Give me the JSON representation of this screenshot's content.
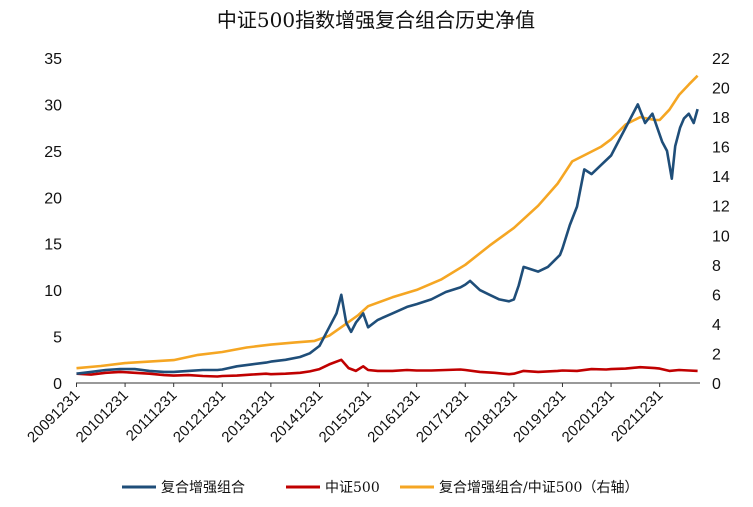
{
  "chart_data": {
    "type": "line",
    "title": "中证500指数增强复合组合历史净值",
    "x_tick_labels": [
      "20091231",
      "20101231",
      "20111231",
      "20121231",
      "20131231",
      "20141231",
      "20151231",
      "20161231",
      "20171231",
      "20181231",
      "20191231",
      "20201231",
      "20211231"
    ],
    "x_range": [
      2009.99,
      2022.83
    ],
    "y_left": {
      "ticks": [
        0,
        5,
        10,
        15,
        20,
        25,
        30,
        35
      ],
      "range": [
        0,
        35
      ]
    },
    "y_right": {
      "ticks": [
        0,
        2,
        4,
        6,
        8,
        10,
        12,
        14,
        16,
        18,
        20,
        22
      ],
      "range": [
        0,
        22
      ]
    },
    "legend_position": "bottom",
    "grid": false,
    "series": [
      {
        "name": "复合增强组合",
        "axis": "left",
        "color": "#1f4e79",
        "points": [
          [
            2010.0,
            1.0
          ],
          [
            2010.3,
            1.2
          ],
          [
            2010.6,
            1.4
          ],
          [
            2010.9,
            1.5
          ],
          [
            2011.2,
            1.5
          ],
          [
            2011.5,
            1.3
          ],
          [
            2011.8,
            1.2
          ],
          [
            2012.0,
            1.2
          ],
          [
            2012.3,
            1.3
          ],
          [
            2012.6,
            1.4
          ],
          [
            2012.9,
            1.4
          ],
          [
            2013.0,
            1.45
          ],
          [
            2013.3,
            1.8
          ],
          [
            2013.6,
            2.0
          ],
          [
            2013.9,
            2.2
          ],
          [
            2014.0,
            2.3
          ],
          [
            2014.3,
            2.5
          ],
          [
            2014.6,
            2.8
          ],
          [
            2014.8,
            3.2
          ],
          [
            2015.0,
            4.0
          ],
          [
            2015.2,
            6.0
          ],
          [
            2015.35,
            7.5
          ],
          [
            2015.45,
            9.5
          ],
          [
            2015.55,
            6.5
          ],
          [
            2015.65,
            5.5
          ],
          [
            2015.75,
            6.5
          ],
          [
            2015.9,
            7.5
          ],
          [
            2016.0,
            6.0
          ],
          [
            2016.2,
            6.8
          ],
          [
            2016.5,
            7.5
          ],
          [
            2016.8,
            8.2
          ],
          [
            2017.0,
            8.5
          ],
          [
            2017.3,
            9.0
          ],
          [
            2017.6,
            9.8
          ],
          [
            2017.9,
            10.3
          ],
          [
            2018.0,
            10.6
          ],
          [
            2018.1,
            11.0
          ],
          [
            2018.3,
            10.0
          ],
          [
            2018.5,
            9.5
          ],
          [
            2018.7,
            9.0
          ],
          [
            2018.9,
            8.8
          ],
          [
            2019.0,
            9.0
          ],
          [
            2019.1,
            10.5
          ],
          [
            2019.2,
            12.5
          ],
          [
            2019.5,
            12.0
          ],
          [
            2019.7,
            12.5
          ],
          [
            2019.95,
            13.8
          ],
          [
            2020.0,
            14.5
          ],
          [
            2020.15,
            17.0
          ],
          [
            2020.3,
            19.0
          ],
          [
            2020.45,
            23.0
          ],
          [
            2020.6,
            22.5
          ],
          [
            2020.8,
            23.5
          ],
          [
            2021.0,
            24.5
          ],
          [
            2021.2,
            26.5
          ],
          [
            2021.4,
            28.5
          ],
          [
            2021.55,
            30.0
          ],
          [
            2021.7,
            28.0
          ],
          [
            2021.85,
            29.0
          ],
          [
            2021.95,
            27.5
          ],
          [
            2022.05,
            26.0
          ],
          [
            2022.15,
            25.0
          ],
          [
            2022.25,
            22.0
          ],
          [
            2022.32,
            25.5
          ],
          [
            2022.42,
            27.5
          ],
          [
            2022.5,
            28.5
          ],
          [
            2022.6,
            29.0
          ],
          [
            2022.7,
            28.0
          ],
          [
            2022.78,
            29.5
          ]
        ]
      },
      {
        "name": "中证500",
        "axis": "left",
        "color": "#c00000",
        "points": [
          [
            2010.0,
            1.0
          ],
          [
            2010.3,
            0.9
          ],
          [
            2010.6,
            1.1
          ],
          [
            2010.9,
            1.2
          ],
          [
            2011.2,
            1.1
          ],
          [
            2011.5,
            1.0
          ],
          [
            2011.8,
            0.85
          ],
          [
            2012.0,
            0.8
          ],
          [
            2012.3,
            0.85
          ],
          [
            2012.6,
            0.75
          ],
          [
            2012.9,
            0.7
          ],
          [
            2013.0,
            0.75
          ],
          [
            2013.3,
            0.8
          ],
          [
            2013.6,
            0.9
          ],
          [
            2013.9,
            1.0
          ],
          [
            2014.0,
            0.95
          ],
          [
            2014.3,
            1.0
          ],
          [
            2014.6,
            1.1
          ],
          [
            2014.8,
            1.25
          ],
          [
            2015.0,
            1.5
          ],
          [
            2015.2,
            2.0
          ],
          [
            2015.45,
            2.5
          ],
          [
            2015.6,
            1.6
          ],
          [
            2015.75,
            1.3
          ],
          [
            2015.9,
            1.8
          ],
          [
            2016.0,
            1.4
          ],
          [
            2016.2,
            1.3
          ],
          [
            2016.5,
            1.3
          ],
          [
            2016.8,
            1.4
          ],
          [
            2017.0,
            1.35
          ],
          [
            2017.3,
            1.35
          ],
          [
            2017.6,
            1.4
          ],
          [
            2017.9,
            1.45
          ],
          [
            2018.0,
            1.4
          ],
          [
            2018.3,
            1.2
          ],
          [
            2018.6,
            1.1
          ],
          [
            2018.9,
            0.95
          ],
          [
            2019.0,
            1.0
          ],
          [
            2019.2,
            1.3
          ],
          [
            2019.5,
            1.2
          ],
          [
            2019.9,
            1.3
          ],
          [
            2020.0,
            1.35
          ],
          [
            2020.3,
            1.3
          ],
          [
            2020.6,
            1.5
          ],
          [
            2020.9,
            1.45
          ],
          [
            2021.0,
            1.5
          ],
          [
            2021.3,
            1.55
          ],
          [
            2021.6,
            1.7
          ],
          [
            2021.9,
            1.6
          ],
          [
            2022.0,
            1.55
          ],
          [
            2022.2,
            1.3
          ],
          [
            2022.4,
            1.4
          ],
          [
            2022.6,
            1.35
          ],
          [
            2022.78,
            1.3
          ]
        ]
      },
      {
        "name": "复合增强组合/中证500（右轴）",
        "axis": "right",
        "color": "#f5a623",
        "points": [
          [
            2010.0,
            1.0
          ],
          [
            2010.5,
            1.15
          ],
          [
            2011.0,
            1.35
          ],
          [
            2011.5,
            1.45
          ],
          [
            2012.0,
            1.55
          ],
          [
            2012.5,
            1.9
          ],
          [
            2013.0,
            2.1
          ],
          [
            2013.5,
            2.4
          ],
          [
            2014.0,
            2.6
          ],
          [
            2014.5,
            2.75
          ],
          [
            2014.9,
            2.85
          ],
          [
            2015.2,
            3.2
          ],
          [
            2015.5,
            3.9
          ],
          [
            2015.8,
            4.6
          ],
          [
            2016.0,
            5.2
          ],
          [
            2016.5,
            5.8
          ],
          [
            2017.0,
            6.3
          ],
          [
            2017.5,
            7.0
          ],
          [
            2018.0,
            8.0
          ],
          [
            2018.5,
            9.3
          ],
          [
            2019.0,
            10.5
          ],
          [
            2019.5,
            12.0
          ],
          [
            2019.9,
            13.5
          ],
          [
            2020.0,
            14.0
          ],
          [
            2020.2,
            15.0
          ],
          [
            2020.5,
            15.5
          ],
          [
            2020.8,
            16.0
          ],
          [
            2021.0,
            16.5
          ],
          [
            2021.3,
            17.5
          ],
          [
            2021.6,
            18.0
          ],
          [
            2021.9,
            17.8
          ],
          [
            2022.0,
            17.8
          ],
          [
            2022.2,
            18.5
          ],
          [
            2022.4,
            19.5
          ],
          [
            2022.6,
            20.2
          ],
          [
            2022.78,
            20.8
          ]
        ]
      }
    ]
  }
}
